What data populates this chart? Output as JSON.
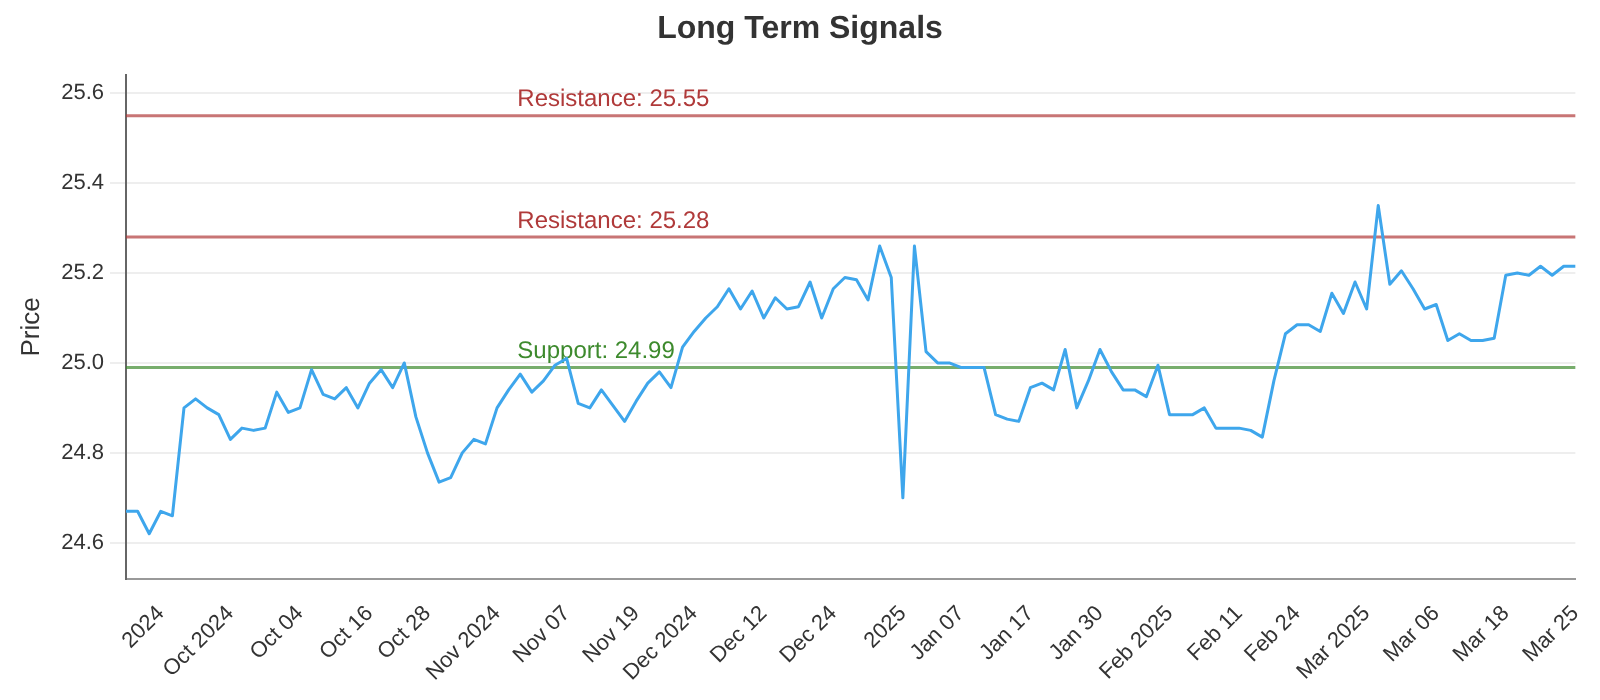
{
  "chart_data": {
    "type": "line",
    "title": "Long Term Signals",
    "ylabel": "Price",
    "categories": [
      null,
      null,
      null,
      "2024",
      null,
      null,
      null,
      null,
      null,
      "Oct 2024",
      null,
      null,
      null,
      null,
      null,
      "Oct 04",
      null,
      null,
      null,
      null,
      null,
      "Oct 16",
      null,
      null,
      null,
      null,
      "Oct 28",
      null,
      null,
      null,
      null,
      null,
      "Nov 2024",
      null,
      null,
      null,
      null,
      null,
      "Nov 07",
      null,
      null,
      null,
      null,
      null,
      "Nov 19",
      null,
      null,
      null,
      null,
      "Dec 2024",
      null,
      null,
      null,
      null,
      null,
      "Dec 12",
      null,
      null,
      null,
      null,
      null,
      "Dec 24",
      null,
      null,
      null,
      null,
      null,
      "2025",
      null,
      null,
      null,
      null,
      "Jan 07",
      null,
      null,
      null,
      null,
      null,
      "Jan 17",
      null,
      null,
      null,
      null,
      null,
      "Jan 30",
      null,
      null,
      null,
      null,
      null,
      "Feb 2025",
      null,
      null,
      null,
      null,
      null,
      "Feb 11",
      null,
      null,
      null,
      null,
      "Feb 24",
      null,
      null,
      null,
      null,
      null,
      "Mar 2025",
      null,
      null,
      null,
      null,
      null,
      "Mar 06",
      null,
      null,
      null,
      null,
      null,
      "Mar 18",
      null,
      null,
      null,
      null,
      null,
      "Mar 25"
    ],
    "series": [
      {
        "color": "#3ea6ec",
        "values": [
          24.67,
          24.67,
          24.62,
          24.67,
          24.66,
          24.9,
          24.92,
          24.9,
          24.885,
          24.83,
          24.855,
          24.85,
          24.855,
          24.935,
          24.89,
          24.9,
          24.985,
          24.93,
          24.92,
          24.945,
          24.9,
          24.955,
          24.985,
          24.945,
          25.0,
          24.88,
          24.8,
          24.735,
          24.745,
          24.8,
          24.83,
          24.82,
          24.9,
          24.94,
          24.975,
          24.935,
          24.96,
          24.995,
          25.01,
          24.91,
          24.9,
          24.94,
          24.905,
          24.87,
          24.915,
          24.955,
          24.98,
          24.945,
          25.035,
          25.07,
          25.1,
          25.125,
          25.165,
          25.12,
          25.16,
          25.1,
          25.145,
          25.12,
          25.125,
          25.18,
          25.1,
          25.165,
          25.19,
          25.185,
          25.14,
          25.26,
          25.19,
          24.7,
          25.26,
          25.025,
          25.0,
          25.0,
          24.99,
          24.99,
          24.99,
          24.885,
          24.875,
          24.87,
          24.945,
          24.955,
          24.94,
          25.03,
          24.9,
          24.96,
          25.03,
          24.98,
          24.94,
          24.94,
          24.925,
          24.995,
          24.885,
          24.885,
          24.885,
          24.9,
          24.855,
          24.855,
          24.855,
          24.85,
          24.835,
          24.96,
          25.065,
          25.085,
          25.085,
          25.07,
          25.155,
          25.11,
          25.18,
          25.12,
          25.35,
          25.175,
          25.205,
          25.165,
          25.12,
          25.13,
          25.05,
          25.065,
          25.05,
          25.05,
          25.055,
          25.195,
          25.2,
          25.195,
          25.215,
          25.195,
          25.215,
          25.215
        ]
      }
    ],
    "ylim": [
      24.52,
      25.64
    ],
    "yticks": [
      24.6,
      24.8,
      {
        "value": 25,
        "label": "25.0"
      },
      25.2,
      25.4,
      25.6
    ],
    "ref_lines": [
      {
        "axis": "y",
        "value": 25.55,
        "label": "Resistance: 25.55",
        "color": "#b03a3a"
      },
      {
        "axis": "y",
        "value": 25.28,
        "label": "Resistance: 25.28",
        "color": "#b03a3a"
      },
      {
        "axis": "y",
        "value": 24.99,
        "label": "Support: 24.99",
        "color": "#3d8a2d"
      }
    ],
    "grid": "y",
    "legend": false,
    "marker": "none",
    "line_style": "solid"
  }
}
